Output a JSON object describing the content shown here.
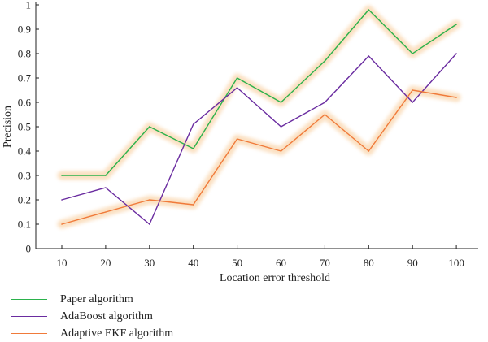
{
  "chart_data": {
    "type": "line",
    "xlabel": "Location error threshold",
    "ylabel": "Precision",
    "categories": [
      10,
      20,
      30,
      40,
      50,
      60,
      70,
      80,
      90,
      100
    ],
    "ylim": [
      0,
      1
    ],
    "yticks": [
      0,
      0.1,
      0.2,
      0.3,
      0.4,
      0.5,
      0.6,
      0.7,
      0.8,
      0.9,
      1
    ],
    "ytick_labels": [
      "0",
      "0.1",
      "0.2",
      "0.3",
      "0.4",
      "0.5",
      "0.6",
      "0.7",
      "0.8",
      "0.9",
      "1"
    ],
    "grid": false,
    "legend_position": "bottom-left",
    "series": [
      {
        "name": "Paper algorithm",
        "color": "#2bb24c",
        "halo": true,
        "values": [
          0.3,
          0.3,
          0.5,
          0.41,
          0.7,
          0.6,
          0.77,
          0.98,
          0.8,
          0.92
        ]
      },
      {
        "name": "AdaBoost algorithm",
        "color": "#6a2ca0",
        "halo": false,
        "values": [
          0.2,
          0.25,
          0.1,
          0.51,
          0.66,
          0.5,
          0.6,
          0.79,
          0.6,
          0.8
        ]
      },
      {
        "name": "Adaptive EKF algorithm",
        "color": "#f07a3a",
        "halo": true,
        "values": [
          0.1,
          0.15,
          0.2,
          0.18,
          0.45,
          0.4,
          0.55,
          0.4,
          0.65,
          0.62
        ]
      }
    ]
  }
}
